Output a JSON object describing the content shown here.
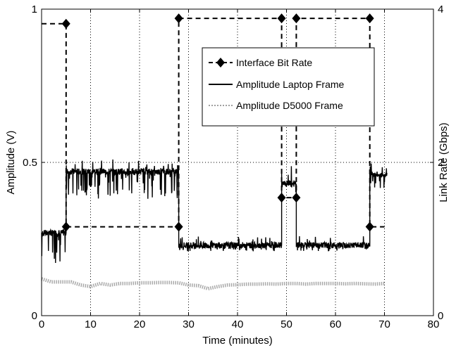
{
  "chart_data": {
    "type": "line",
    "xlabel": "Time (minutes)",
    "ylabel": "Amplitude (V)",
    "y2label": "Link Rate (Gbps)",
    "xlim": [
      0,
      80
    ],
    "ylim": [
      0,
      1
    ],
    "y2lim": [
      0,
      4
    ],
    "xticks": [
      "0",
      "10",
      "20",
      "30",
      "40",
      "50",
      "60",
      "70",
      "80"
    ],
    "yticks": [
      "0",
      "0.5",
      "1"
    ],
    "y2ticks": [
      "0",
      "2",
      "4"
    ],
    "grid": "dotted",
    "legend_position": "top-right",
    "legend": [
      "Interface Bit Rate",
      "Amplitude Laptop Frame",
      "Amplitude D5000 Frame"
    ],
    "series": [
      {
        "name": "Interface Bit Rate",
        "axis": "right",
        "style": "dashed-diamond",
        "color": "#000000",
        "x": [
          0,
          5,
          5,
          28,
          28,
          49,
          49,
          52,
          52,
          67,
          67,
          70
        ],
        "y": [
          3.81,
          3.81,
          1.16,
          1.16,
          3.88,
          3.88,
          1.54,
          1.54,
          3.88,
          3.88,
          1.16,
          1.16
        ],
        "markers_x": [
          5,
          5,
          28,
          28,
          49,
          49,
          52,
          52,
          67,
          67
        ],
        "markers_y": [
          3.81,
          1.16,
          1.16,
          3.88,
          3.88,
          1.54,
          1.54,
          3.88,
          3.88,
          1.16
        ]
      },
      {
        "name": "Amplitude Laptop Frame",
        "axis": "left",
        "style": "solid",
        "color": "#000000",
        "segments": [
          {
            "x_start": 0,
            "x_end": 5,
            "mean": 0.27,
            "min": 0.17,
            "max": 0.29
          },
          {
            "x_start": 5,
            "x_end": 28,
            "mean": 0.47,
            "min": 0.38,
            "max": 0.51
          },
          {
            "x_start": 28,
            "x_end": 49,
            "mean": 0.23,
            "min": 0.21,
            "max": 0.26
          },
          {
            "x_start": 49,
            "x_end": 52,
            "mean": 0.43,
            "min": 0.39,
            "max": 0.5
          },
          {
            "x_start": 52,
            "x_end": 67,
            "mean": 0.23,
            "min": 0.21,
            "max": 0.26
          },
          {
            "x_start": 67,
            "x_end": 70.5,
            "mean": 0.46,
            "min": 0.41,
            "max": 0.5
          }
        ]
      },
      {
        "name": "Amplitude D5000 Frame",
        "axis": "left",
        "style": "dotted",
        "color": "#a0a0a0",
        "x": [
          0,
          2,
          4,
          6,
          8,
          10,
          12,
          14,
          16,
          18,
          20,
          22,
          24,
          26,
          28,
          30,
          32,
          34,
          36,
          38,
          40,
          42,
          44,
          46,
          48,
          50,
          52,
          54,
          56,
          58,
          60,
          62,
          64,
          66,
          68,
          70
        ],
        "y": [
          0.12,
          0.11,
          0.11,
          0.11,
          0.1,
          0.095,
          0.105,
          0.1,
          0.105,
          0.105,
          0.107,
          0.107,
          0.108,
          0.108,
          0.107,
          0.1,
          0.098,
          0.088,
          0.095,
          0.1,
          0.101,
          0.103,
          0.103,
          0.104,
          0.103,
          0.105,
          0.105,
          0.103,
          0.105,
          0.105,
          0.105,
          0.104,
          0.105,
          0.104,
          0.103,
          0.105
        ]
      }
    ]
  }
}
